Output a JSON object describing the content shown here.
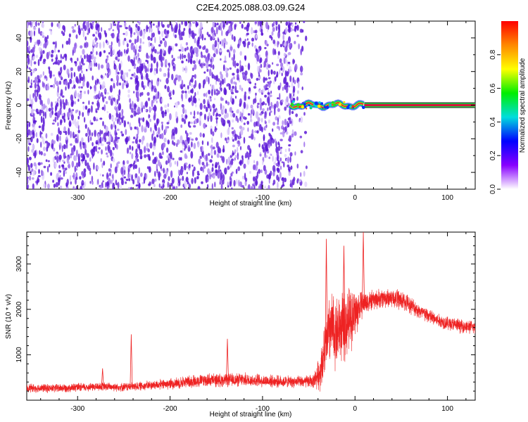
{
  "title": "C2E4.2025.088.03.09.G24",
  "colors": {
    "snr_line": "#ee2222",
    "spectral_dot": "#6a2bd9",
    "ridge": "#d4143a"
  },
  "chart_data": [
    {
      "type": "heatmap",
      "xlabel": "Height of straight line (km)",
      "ylabel": "Frequency (Hz)",
      "xlim": [
        -355,
        130
      ],
      "ylim": [
        -50,
        50
      ],
      "xticks": [
        -300,
        -200,
        -100,
        0,
        100
      ],
      "yticks": [
        -40,
        -20,
        0,
        20,
        40
      ],
      "noise_region_x": [
        -355,
        -52
      ],
      "ridge": {
        "x_start": -70,
        "x_end": 130,
        "frequency": 0
      },
      "colorbar": {
        "label": "Normalized spectral amplitude",
        "range": [
          0,
          1
        ],
        "ticks": [
          "0.0",
          "0.2",
          "0.4",
          "0.6",
          "0.8"
        ],
        "colormap": [
          "#ffffff",
          "#8800ff",
          "#0000ff",
          "#00dddd",
          "#00ee00",
          "#ffff00",
          "#ff8800",
          "#ff0000"
        ]
      }
    },
    {
      "type": "line",
      "xlabel": "Height of straight line (km)",
      "ylabel": "SNR (10 * v/v)",
      "xlim": [
        -355,
        130
      ],
      "ylim": [
        0,
        3700
      ],
      "xticks": [
        -300,
        -200,
        -100,
        0,
        100
      ],
      "yticks": [
        1000,
        2000,
        3000
      ],
      "series": [
        {
          "x": [
            -355,
            -330,
            -300,
            -275,
            -250,
            -240,
            -220,
            -200,
            -180,
            -160,
            -140,
            -120,
            -100,
            -80,
            -60,
            -45,
            -38,
            -32,
            -27,
            -22,
            -15,
            -10,
            -5,
            0,
            5,
            10,
            20,
            30,
            40,
            50,
            60,
            70,
            80,
            90,
            100,
            110,
            120,
            130
          ],
          "y": [
            270,
            260,
            280,
            300,
            290,
            300,
            330,
            360,
            410,
            440,
            440,
            450,
            430,
            410,
            400,
            420,
            620,
            1150,
            1600,
            1500,
            1600,
            1650,
            1800,
            1900,
            2050,
            2150,
            2200,
            2250,
            2250,
            2200,
            2100,
            1950,
            1850,
            1750,
            1700,
            1650,
            1620,
            1600
          ],
          "spread": [
            110,
            110,
            110,
            110,
            110,
            110,
            120,
            140,
            160,
            170,
            170,
            170,
            160,
            150,
            150,
            170,
            450,
            750,
            950,
            950,
            850,
            900,
            800,
            700,
            400,
            300,
            250,
            250,
            250,
            250,
            220,
            200,
            200,
            180,
            180,
            180,
            170,
            170
          ],
          "spikes": [
            {
              "x": -273,
              "y": 700
            },
            {
              "x": -242,
              "y": 1450
            },
            {
              "x": -138,
              "y": 1350
            },
            {
              "x": -31,
              "y": 3550
            },
            {
              "x": -12,
              "y": 3400
            },
            {
              "x": 9,
              "y": 3700
            }
          ]
        }
      ]
    }
  ]
}
